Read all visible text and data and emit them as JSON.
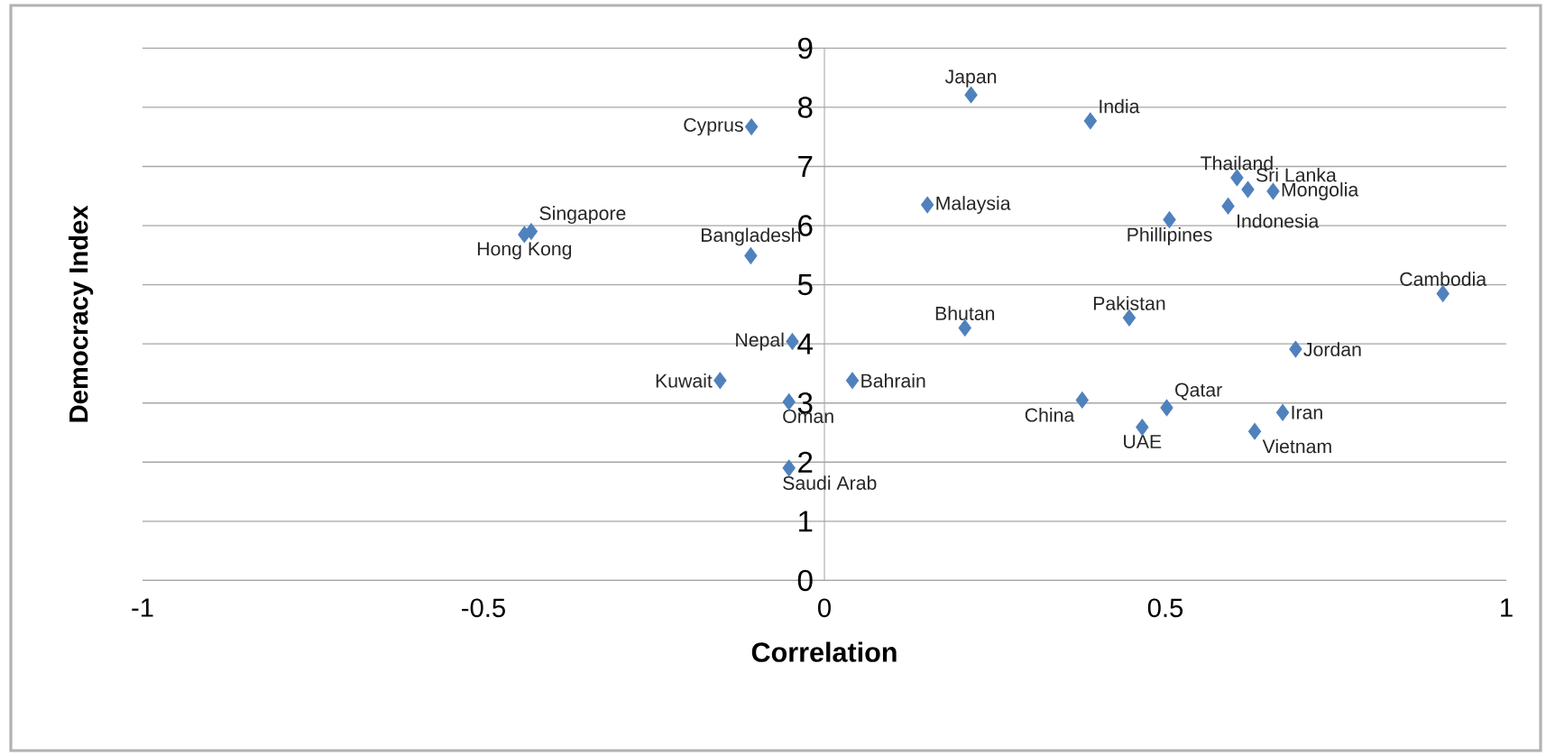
{
  "chart_data": {
    "type": "scatter",
    "xlabel": "Correlation",
    "ylabel": "Democracy Index",
    "x": [
      -0.107,
      -0.43,
      -0.44,
      -0.108,
      -0.047,
      -0.153,
      0.041,
      -0.052,
      -0.052,
      0.151,
      0.206,
      0.215,
      0.39,
      0.605,
      0.621,
      0.658,
      0.592,
      0.506,
      0.907,
      0.447,
      0.691,
      0.378,
      0.502,
      0.466,
      0.672,
      0.631
    ],
    "values": [
      7.67,
      5.9,
      5.85,
      5.49,
      4.04,
      3.38,
      3.38,
      3.02,
      1.9,
      6.35,
      4.27,
      8.21,
      7.77,
      6.81,
      6.61,
      6.58,
      6.33,
      6.1,
      4.85,
      4.44,
      3.91,
      3.05,
      2.92,
      2.59,
      2.84,
      2.52
    ],
    "color": "#4f81bd",
    "marker": "diamond",
    "grid": "y",
    "xlim": [
      -1,
      1
    ],
    "xticks": [
      -1,
      -0.5,
      0,
      0.5,
      1
    ],
    "ylim": [
      0,
      9
    ],
    "yticks": [
      0,
      1,
      2,
      3,
      4,
      5,
      6,
      7,
      8,
      9
    ],
    "annotations": [
      {
        "text": "Cyprus",
        "x": -0.107,
        "y": 7.67
      },
      {
        "text": "Singapore",
        "x": -0.43,
        "y": 5.9
      },
      {
        "text": "Hong Kong",
        "x": -0.44,
        "y": 5.85
      },
      {
        "text": "Bangladesh",
        "x": -0.108,
        "y": 5.49
      },
      {
        "text": "Nepal",
        "x": -0.047,
        "y": 4.04
      },
      {
        "text": "Kuwait",
        "x": -0.153,
        "y": 3.38
      },
      {
        "text": "Bahrain",
        "x": 0.041,
        "y": 3.38
      },
      {
        "text": "Oman",
        "x": -0.052,
        "y": 3.02
      },
      {
        "text": "Saudi Arab",
        "x": -0.052,
        "y": 1.9
      },
      {
        "text": "Malaysia",
        "x": 0.151,
        "y": 6.35
      },
      {
        "text": "Bhutan",
        "x": 0.206,
        "y": 4.27
      },
      {
        "text": "Japan",
        "x": 0.215,
        "y": 8.21
      },
      {
        "text": "India",
        "x": 0.39,
        "y": 7.77
      },
      {
        "text": "Thailand",
        "x": 0.605,
        "y": 6.81
      },
      {
        "text": "Sri Lanka",
        "x": 0.621,
        "y": 6.61
      },
      {
        "text": "Mongolia",
        "x": 0.658,
        "y": 6.58
      },
      {
        "text": "Indonesia",
        "x": 0.592,
        "y": 6.33
      },
      {
        "text": "Phillipines",
        "x": 0.506,
        "y": 6.1
      },
      {
        "text": "Cambodia",
        "x": 0.907,
        "y": 4.85
      },
      {
        "text": "Pakistan",
        "x": 0.447,
        "y": 4.44
      },
      {
        "text": "Jordan",
        "x": 0.691,
        "y": 3.91
      },
      {
        "text": "China",
        "x": 0.378,
        "y": 3.05
      },
      {
        "text": "Qatar",
        "x": 0.502,
        "y": 2.92
      },
      {
        "text": "UAE",
        "x": 0.466,
        "y": 2.59
      },
      {
        "text": "Iran",
        "x": 0.672,
        "y": 2.84
      },
      {
        "text": "Vietnam",
        "x": 0.631,
        "y": 2.52
      }
    ]
  }
}
